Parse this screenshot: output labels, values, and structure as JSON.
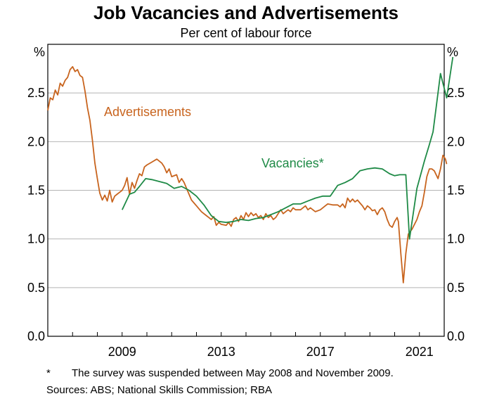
{
  "chart_data": {
    "type": "line",
    "title": "Job Vacancies and Advertisements",
    "subtitle": "Per cent of labour force",
    "y_unit_left": "%",
    "y_unit_right": "%",
    "ylim": [
      0,
      3.0
    ],
    "yticks": [
      0.0,
      0.5,
      1.0,
      1.5,
      2.0,
      2.5
    ],
    "ytick_labels": [
      "0.0",
      "0.5",
      "1.0",
      "1.5",
      "2.0",
      "2.5"
    ],
    "xlim": [
      2006.0,
      2022.0
    ],
    "xticks": [
      2009,
      2013,
      2017,
      2021
    ],
    "xtick_labels": [
      "2009",
      "2013",
      "2017",
      "2021"
    ],
    "grid": true,
    "series": [
      {
        "name": "Advertisements",
        "label": "Advertisements",
        "color": "#c8641e",
        "points": [
          [
            2006.0,
            2.32
          ],
          [
            2006.1,
            2.45
          ],
          [
            2006.2,
            2.43
          ],
          [
            2006.3,
            2.53
          ],
          [
            2006.4,
            2.48
          ],
          [
            2006.5,
            2.6
          ],
          [
            2006.6,
            2.57
          ],
          [
            2006.7,
            2.63
          ],
          [
            2006.8,
            2.66
          ],
          [
            2006.9,
            2.74
          ],
          [
            2007.0,
            2.77
          ],
          [
            2007.1,
            2.72
          ],
          [
            2007.2,
            2.74
          ],
          [
            2007.3,
            2.68
          ],
          [
            2007.4,
            2.66
          ],
          [
            2007.5,
            2.52
          ],
          [
            2007.6,
            2.35
          ],
          [
            2007.7,
            2.22
          ],
          [
            2007.8,
            2.02
          ],
          [
            2007.9,
            1.78
          ],
          [
            2008.0,
            1.62
          ],
          [
            2008.1,
            1.47
          ],
          [
            2008.2,
            1.4
          ],
          [
            2008.3,
            1.45
          ],
          [
            2008.4,
            1.39
          ],
          [
            2008.5,
            1.5
          ],
          [
            2008.6,
            1.38
          ],
          [
            2008.7,
            1.44
          ],
          [
            2008.8,
            1.46
          ],
          [
            2008.9,
            1.48
          ],
          [
            2009.0,
            1.5
          ],
          [
            2009.1,
            1.55
          ],
          [
            2009.2,
            1.63
          ],
          [
            2009.3,
            1.46
          ],
          [
            2009.4,
            1.58
          ],
          [
            2009.5,
            1.52
          ],
          [
            2009.6,
            1.6
          ],
          [
            2009.7,
            1.67
          ],
          [
            2009.8,
            1.65
          ],
          [
            2009.9,
            1.74
          ],
          [
            2010.0,
            1.76
          ],
          [
            2010.2,
            1.79
          ],
          [
            2010.4,
            1.82
          ],
          [
            2010.6,
            1.78
          ],
          [
            2010.7,
            1.74
          ],
          [
            2010.8,
            1.68
          ],
          [
            2010.9,
            1.72
          ],
          [
            2011.0,
            1.64
          ],
          [
            2011.2,
            1.66
          ],
          [
            2011.3,
            1.58
          ],
          [
            2011.4,
            1.62
          ],
          [
            2011.5,
            1.58
          ],
          [
            2011.6,
            1.52
          ],
          [
            2011.7,
            1.46
          ],
          [
            2011.8,
            1.4
          ],
          [
            2011.9,
            1.37
          ],
          [
            2012.0,
            1.34
          ],
          [
            2012.2,
            1.28
          ],
          [
            2012.4,
            1.24
          ],
          [
            2012.5,
            1.22
          ],
          [
            2012.6,
            1.2
          ],
          [
            2012.7,
            1.23
          ],
          [
            2012.8,
            1.14
          ],
          [
            2012.9,
            1.17
          ],
          [
            2013.0,
            1.15
          ],
          [
            2013.2,
            1.14
          ],
          [
            2013.3,
            1.17
          ],
          [
            2013.4,
            1.13
          ],
          [
            2013.5,
            1.2
          ],
          [
            2013.6,
            1.22
          ],
          [
            2013.7,
            1.18
          ],
          [
            2013.8,
            1.24
          ],
          [
            2013.9,
            1.2
          ],
          [
            2014.0,
            1.27
          ],
          [
            2014.1,
            1.23
          ],
          [
            2014.2,
            1.27
          ],
          [
            2014.3,
            1.24
          ],
          [
            2014.4,
            1.26
          ],
          [
            2014.5,
            1.22
          ],
          [
            2014.6,
            1.24
          ],
          [
            2014.7,
            1.2
          ],
          [
            2014.8,
            1.26
          ],
          [
            2014.9,
            1.22
          ],
          [
            2015.0,
            1.24
          ],
          [
            2015.1,
            1.2
          ],
          [
            2015.2,
            1.22
          ],
          [
            2015.3,
            1.26
          ],
          [
            2015.4,
            1.3
          ],
          [
            2015.5,
            1.26
          ],
          [
            2015.6,
            1.28
          ],
          [
            2015.7,
            1.3
          ],
          [
            2015.8,
            1.28
          ],
          [
            2015.9,
            1.32
          ],
          [
            2016.0,
            1.3
          ],
          [
            2016.2,
            1.3
          ],
          [
            2016.4,
            1.34
          ],
          [
            2016.5,
            1.3
          ],
          [
            2016.6,
            1.32
          ],
          [
            2016.8,
            1.28
          ],
          [
            2017.0,
            1.3
          ],
          [
            2017.2,
            1.34
          ],
          [
            2017.3,
            1.36
          ],
          [
            2017.5,
            1.35
          ],
          [
            2017.7,
            1.35
          ],
          [
            2017.8,
            1.33
          ],
          [
            2017.9,
            1.36
          ],
          [
            2018.0,
            1.32
          ],
          [
            2018.1,
            1.42
          ],
          [
            2018.2,
            1.38
          ],
          [
            2018.3,
            1.41
          ],
          [
            2018.4,
            1.38
          ],
          [
            2018.5,
            1.4
          ],
          [
            2018.6,
            1.37
          ],
          [
            2018.7,
            1.34
          ],
          [
            2018.8,
            1.3
          ],
          [
            2018.9,
            1.34
          ],
          [
            2019.0,
            1.32
          ],
          [
            2019.1,
            1.29
          ],
          [
            2019.2,
            1.3
          ],
          [
            2019.3,
            1.25
          ],
          [
            2019.4,
            1.3
          ],
          [
            2019.5,
            1.32
          ],
          [
            2019.6,
            1.28
          ],
          [
            2019.7,
            1.2
          ],
          [
            2019.8,
            1.14
          ],
          [
            2019.9,
            1.12
          ],
          [
            2020.0,
            1.18
          ],
          [
            2020.1,
            1.22
          ],
          [
            2020.15,
            1.18
          ],
          [
            2020.25,
            0.85
          ],
          [
            2020.35,
            0.55
          ],
          [
            2020.45,
            0.85
          ],
          [
            2020.55,
            1.05
          ],
          [
            2020.7,
            1.1
          ],
          [
            2020.9,
            1.2
          ],
          [
            2021.0,
            1.28
          ],
          [
            2021.1,
            1.34
          ],
          [
            2021.2,
            1.48
          ],
          [
            2021.3,
            1.64
          ],
          [
            2021.4,
            1.72
          ],
          [
            2021.5,
            1.72
          ],
          [
            2021.6,
            1.7
          ],
          [
            2021.75,
            1.62
          ],
          [
            2021.85,
            1.72
          ],
          [
            2021.95,
            1.86
          ],
          [
            2022.05,
            1.82
          ],
          [
            2022.1,
            1.77
          ]
        ]
      },
      {
        "name": "Vacancies*",
        "label": "Vacancies*",
        "color": "#1e8a46",
        "points": [
          [
            2009.0,
            1.3
          ],
          [
            2009.3,
            1.46
          ],
          [
            2009.5,
            1.48
          ],
          [
            2009.7,
            1.54
          ],
          [
            2009.95,
            1.62
          ],
          [
            2010.2,
            1.61
          ],
          [
            2010.5,
            1.59
          ],
          [
            2010.8,
            1.57
          ],
          [
            2011.1,
            1.52
          ],
          [
            2011.4,
            1.54
          ],
          [
            2011.7,
            1.5
          ],
          [
            2012.0,
            1.44
          ],
          [
            2012.3,
            1.35
          ],
          [
            2012.6,
            1.24
          ],
          [
            2012.9,
            1.18
          ],
          [
            2013.2,
            1.17
          ],
          [
            2013.5,
            1.18
          ],
          [
            2013.8,
            1.2
          ],
          [
            2014.1,
            1.19
          ],
          [
            2014.4,
            1.21
          ],
          [
            2014.7,
            1.22
          ],
          [
            2015.0,
            1.25
          ],
          [
            2015.3,
            1.28
          ],
          [
            2015.6,
            1.32
          ],
          [
            2015.9,
            1.36
          ],
          [
            2016.2,
            1.36
          ],
          [
            2016.5,
            1.39
          ],
          [
            2016.8,
            1.42
          ],
          [
            2017.1,
            1.44
          ],
          [
            2017.4,
            1.44
          ],
          [
            2017.7,
            1.55
          ],
          [
            2018.0,
            1.58
          ],
          [
            2018.3,
            1.62
          ],
          [
            2018.6,
            1.7
          ],
          [
            2018.9,
            1.72
          ],
          [
            2019.2,
            1.73
          ],
          [
            2019.5,
            1.72
          ],
          [
            2019.8,
            1.67
          ],
          [
            2020.0,
            1.65
          ],
          [
            2020.2,
            1.66
          ],
          [
            2020.45,
            1.66
          ],
          [
            2020.6,
            1.0
          ],
          [
            2020.9,
            1.52
          ],
          [
            2021.2,
            1.8
          ],
          [
            2021.4,
            1.97
          ],
          [
            2021.55,
            2.1
          ],
          [
            2021.85,
            2.7
          ],
          [
            2022.1,
            2.45
          ],
          [
            2022.35,
            2.87
          ]
        ]
      }
    ],
    "annotations": [
      {
        "text": "Advertisements",
        "series": "Advertisements"
      },
      {
        "text": "Vacancies*",
        "series": "Vacancies*"
      }
    ]
  },
  "footnote": {
    "marker": "*",
    "text": "The survey was suspended between May 2008 and November 2009."
  },
  "sources": "Sources: ABS; National Skills Commission; RBA"
}
